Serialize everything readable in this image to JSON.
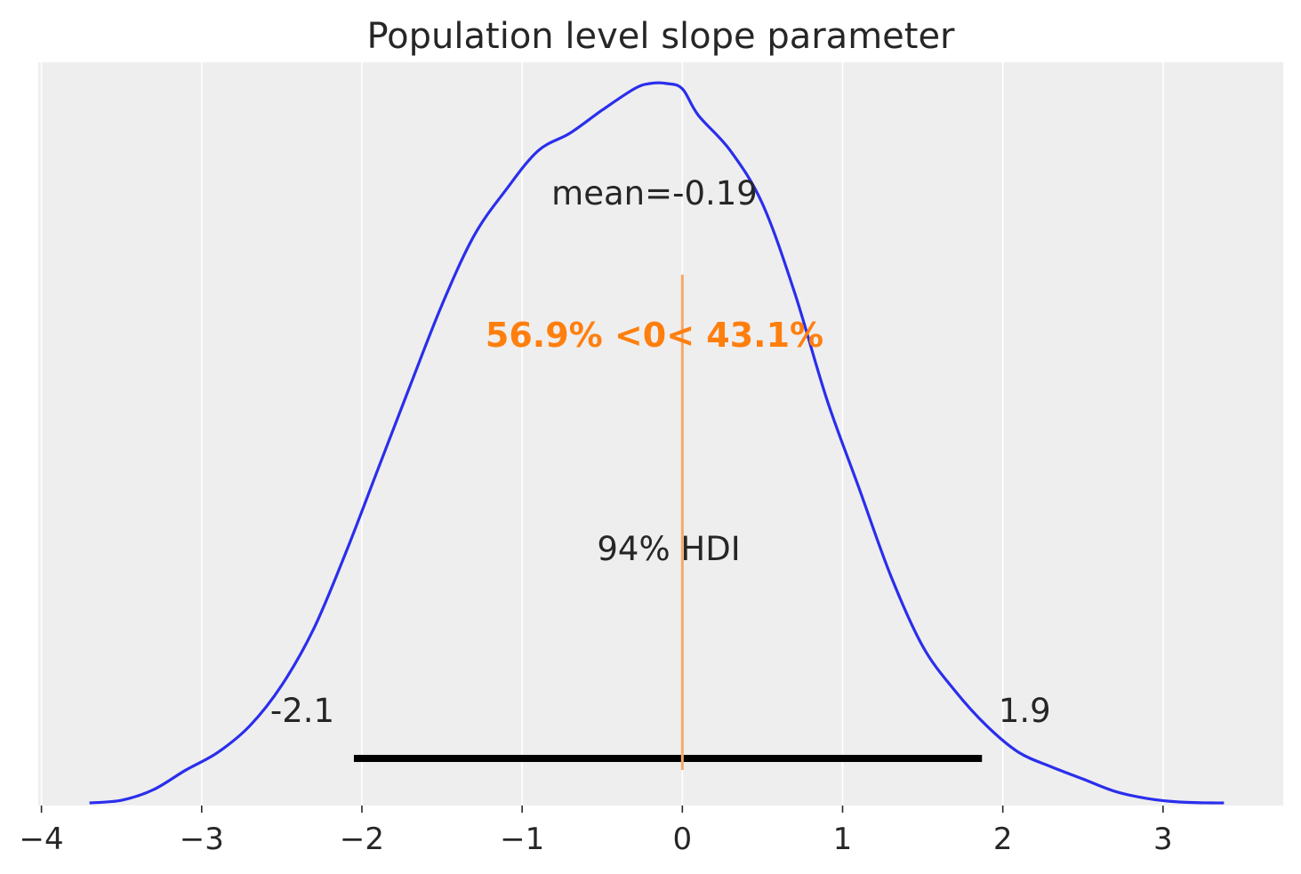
{
  "chart_data": {
    "type": "line",
    "title": "Population level slope parameter",
    "xlabel": "",
    "ylabel": "",
    "xlim": [
      -4.02,
      3.75
    ],
    "ylim": [
      0,
      0.42
    ],
    "grid": "vertical",
    "x_ticks": [
      -4,
      -3,
      -2,
      -1,
      0,
      1,
      2,
      3
    ],
    "x_tick_labels": [
      "−4",
      "−3",
      "−2",
      "−1",
      "0",
      "1",
      "2",
      "3"
    ],
    "series": [
      {
        "color": "#2a2eec",
        "x": [
          -3.7,
          -3.5,
          -3.3,
          -3.1,
          -2.9,
          -2.7,
          -2.5,
          -2.3,
          -2.1,
          -1.9,
          -1.7,
          -1.5,
          -1.3,
          -1.1,
          -0.9,
          -0.7,
          -0.5,
          -0.3,
          -0.2,
          -0.1,
          0.0,
          0.1,
          0.3,
          0.5,
          0.7,
          0.9,
          1.1,
          1.3,
          1.5,
          1.7,
          1.9,
          2.1,
          2.3,
          2.5,
          2.7,
          2.9,
          3.1,
          3.3,
          3.38
        ],
        "values": [
          0.0015,
          0.003,
          0.009,
          0.02,
          0.03,
          0.045,
          0.068,
          0.1,
          0.143,
          0.19,
          0.237,
          0.283,
          0.322,
          0.348,
          0.37,
          0.38,
          0.393,
          0.405,
          0.408,
          0.408,
          0.405,
          0.39,
          0.37,
          0.34,
          0.29,
          0.23,
          0.18,
          0.13,
          0.09,
          0.065,
          0.045,
          0.03,
          0.022,
          0.015,
          0.008,
          0.004,
          0.002,
          0.0015,
          0.0015
        ]
      }
    ],
    "mean_label": "mean=-0.19",
    "reference": {
      "value": 0,
      "color": "#f6a969",
      "ymin": 0.0,
      "ymax": 0.3
    },
    "reference_label": {
      "text": "56.9% <0< 43.1%",
      "color": "#ff7f0e"
    },
    "hdi": {
      "low": -2.05,
      "high": 1.87,
      "low_label": "-2.1",
      "high_label": "1.9",
      "label": "94% HDI",
      "color": "#000000"
    }
  }
}
